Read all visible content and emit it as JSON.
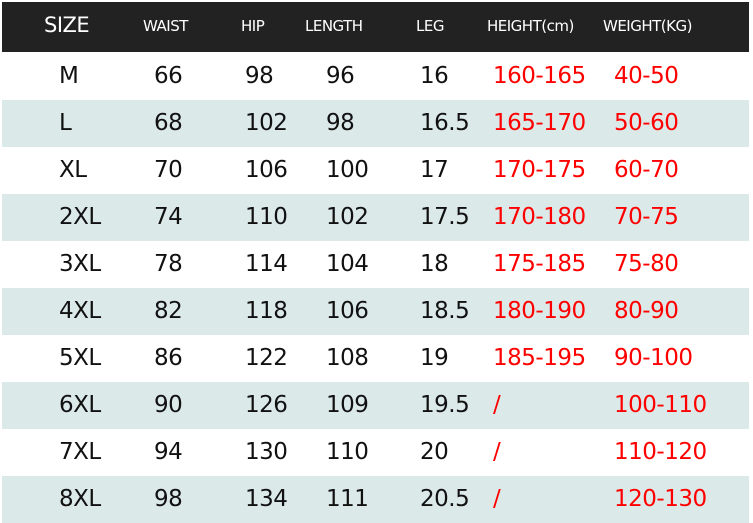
{
  "headers": [
    "SIZE",
    "WAIST",
    "HIP",
    "LENGTH",
    "LEG",
    "HEIGHT(cm)",
    "WEIGHT(KG)"
  ],
  "rows": [
    [
      "M",
      "66",
      "98",
      "96",
      "16",
      "160-165",
      "40-50"
    ],
    [
      "L",
      "68",
      "102",
      "98",
      "16.5",
      "165-170",
      "50-60"
    ],
    [
      "XL",
      "70",
      "106",
      "100",
      "17",
      "170-175",
      "60-70"
    ],
    [
      "2XL",
      "74",
      "110",
      "102",
      "17.5",
      "170-180",
      "70-75"
    ],
    [
      "3XL",
      "78",
      "114",
      "104",
      "18",
      "175-185",
      "75-80"
    ],
    [
      "4XL",
      "82",
      "118",
      "106",
      "18.5",
      "180-190",
      "80-90"
    ],
    [
      "5XL",
      "86",
      "122",
      "108",
      "19",
      "185-195",
      "90-100"
    ],
    [
      "6XL",
      "90",
      "126",
      "109",
      "19.5",
      "/",
      "100-110"
    ],
    [
      "7XL",
      "94",
      "130",
      "110",
      "20",
      "/",
      "110-120"
    ],
    [
      "8XL",
      "98",
      "134",
      "111",
      "20.5",
      "/",
      "120-130"
    ]
  ],
  "colors": {
    "header_bg": "#222222",
    "alt_row_bg": "#dce9e9",
    "highlight_text": "#ff0000"
  }
}
